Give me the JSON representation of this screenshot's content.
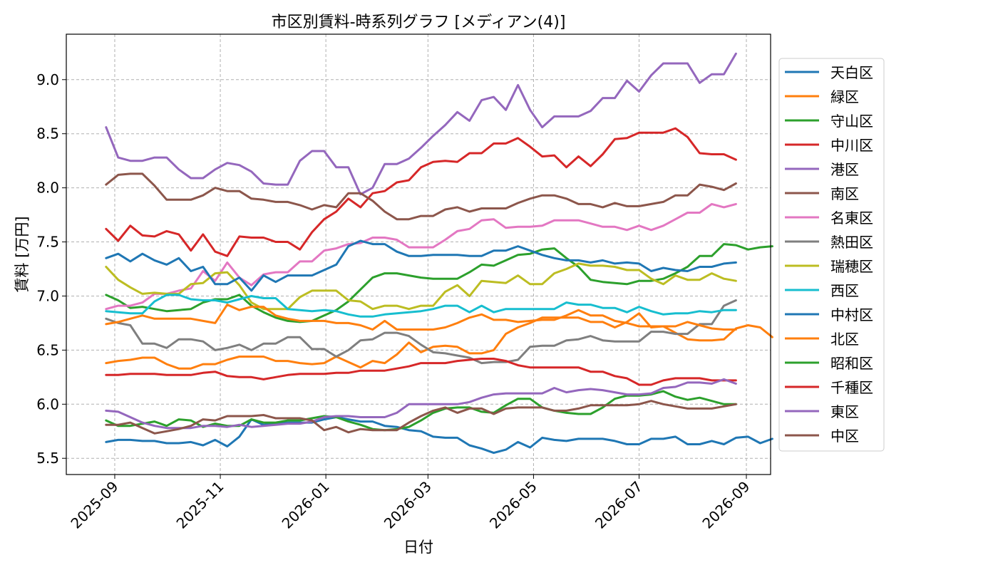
{
  "chart_data": {
    "type": "line",
    "title": "市区別賃料-時系列グラフ [メディアン(4)]",
    "xlabel": "日付",
    "ylabel": "賃料 [万円]",
    "x_start": "2025-08-27",
    "x_step_days": 7,
    "xlim": [
      "2025-08-04",
      "2026-09-15"
    ],
    "ylim": [
      5.35,
      9.42
    ],
    "xticks": [
      "2025-09",
      "2025-11",
      "2026-01",
      "2026-03",
      "2026-05",
      "2026-07",
      "2026-09"
    ],
    "xtick_dates": [
      "2025-09-01",
      "2025-11-01",
      "2026-01-01",
      "2026-03-01",
      "2026-05-01",
      "2026-07-01",
      "2026-09-01"
    ],
    "yticks": [
      5.5,
      6.0,
      6.5,
      7.0,
      7.5,
      8.0,
      8.5,
      9.0
    ],
    "ytick_labels": [
      "5.5",
      "6.0",
      "6.5",
      "7.0",
      "7.5",
      "8.0",
      "8.5",
      "9.0"
    ],
    "grid": true,
    "legend_position": "right-outside",
    "series": [
      {
        "name": "天白区",
        "color": "#1f77b4",
        "values": [
          5.65,
          5.67,
          5.67,
          5.66,
          5.66,
          5.64,
          5.64,
          5.65,
          5.62,
          5.67,
          5.61,
          5.7,
          5.86,
          5.81,
          5.82,
          5.83,
          5.83,
          5.83,
          5.86,
          5.88,
          5.86,
          5.84,
          5.84,
          5.8,
          5.79,
          5.76,
          5.75,
          5.7,
          5.69,
          5.69,
          5.62,
          5.59,
          5.55,
          5.58,
          5.65,
          5.6,
          5.69,
          5.67,
          5.66,
          5.68,
          5.68,
          5.68,
          5.66,
          5.63,
          5.63,
          5.68,
          5.68,
          5.7,
          5.63,
          5.63,
          5.66,
          5.63,
          5.69,
          5.7,
          5.64,
          5.68
        ]
      },
      {
        "name": "緑区",
        "color": "#ff7f0e",
        "values": [
          6.38,
          6.4,
          6.41,
          6.43,
          6.43,
          6.37,
          6.33,
          6.33,
          6.37,
          6.37,
          6.41,
          6.44,
          6.44,
          6.44,
          6.4,
          6.4,
          6.38,
          6.37,
          6.38,
          6.44,
          6.39,
          6.34,
          6.4,
          6.38,
          6.46,
          6.57,
          6.48,
          6.53,
          6.54,
          6.53,
          6.47,
          6.47,
          6.5,
          6.65,
          6.71,
          6.75,
          6.8,
          6.8,
          6.8,
          6.8,
          6.76,
          6.76,
          6.71,
          6.76,
          6.84,
          6.71,
          6.72,
          6.66,
          6.6,
          6.59,
          6.59,
          6.6,
          6.7,
          6.73,
          6.71,
          6.62
        ]
      },
      {
        "name": "守山区",
        "color": "#2ca02c",
        "values": [
          7.01,
          6.96,
          6.89,
          6.9,
          6.88,
          6.86,
          6.87,
          6.88,
          6.94,
          6.97,
          6.97,
          7.01,
          6.91,
          6.85,
          6.8,
          6.77,
          6.76,
          6.77,
          6.82,
          6.87,
          6.95,
          7.06,
          7.17,
          7.21,
          7.21,
          7.19,
          7.17,
          7.16,
          7.16,
          7.16,
          7.22,
          7.29,
          7.28,
          7.33,
          7.38,
          7.39,
          7.43,
          7.44,
          7.35,
          7.27,
          7.15,
          7.13,
          7.12,
          7.11,
          7.14,
          7.14,
          7.16,
          7.21,
          7.27,
          7.37,
          7.37,
          7.48,
          7.47,
          7.43,
          7.45,
          7.46
        ]
      },
      {
        "name": "中川区",
        "color": "#d62728",
        "values": [
          7.62,
          7.51,
          7.65,
          7.56,
          7.55,
          7.6,
          7.57,
          7.42,
          7.57,
          7.41,
          7.37,
          7.55,
          7.54,
          7.54,
          7.5,
          7.5,
          7.43,
          7.59,
          7.71,
          7.78,
          7.9,
          7.82,
          7.95,
          7.97,
          8.05,
          8.07,
          8.19,
          8.24,
          8.25,
          8.24,
          8.32,
          8.32,
          8.41,
          8.41,
          8.46,
          8.38,
          8.29,
          8.3,
          8.19,
          8.29,
          8.2,
          8.31,
          8.45,
          8.46,
          8.51,
          8.51,
          8.51,
          8.55,
          8.47,
          8.32,
          8.31,
          8.31,
          8.26
        ]
      },
      {
        "name": "港区",
        "color": "#9467bd",
        "values": [
          8.56,
          8.28,
          8.25,
          8.25,
          8.28,
          8.28,
          8.17,
          8.09,
          8.09,
          8.17,
          8.23,
          8.21,
          8.15,
          8.04,
          8.03,
          8.03,
          8.25,
          8.34,
          8.34,
          8.19,
          8.19,
          7.94,
          8.0,
          8.22,
          8.22,
          8.27,
          8.37,
          8.48,
          8.58,
          8.7,
          8.62,
          8.81,
          8.84,
          8.72,
          8.95,
          8.72,
          8.56,
          8.66,
          8.66,
          8.66,
          8.71,
          8.83,
          8.83,
          8.99,
          8.89,
          9.04,
          9.15,
          9.15,
          9.15,
          8.97,
          9.05,
          9.05,
          9.24
        ]
      },
      {
        "name": "南区",
        "color": "#8c564b",
        "values": [
          8.03,
          8.12,
          8.13,
          8.13,
          8.02,
          7.89,
          7.89,
          7.89,
          7.93,
          8.0,
          7.97,
          7.97,
          7.9,
          7.89,
          7.87,
          7.87,
          7.84,
          7.8,
          7.84,
          7.82,
          7.95,
          7.95,
          7.88,
          7.78,
          7.71,
          7.71,
          7.74,
          7.74,
          7.8,
          7.82,
          7.78,
          7.81,
          7.81,
          7.81,
          7.86,
          7.9,
          7.93,
          7.93,
          7.9,
          7.85,
          7.85,
          7.82,
          7.86,
          7.83,
          7.83,
          7.85,
          7.87,
          7.93,
          7.93,
          8.03,
          8.01,
          7.98,
          8.04
        ]
      },
      {
        "name": "名東区",
        "color": "#e377c2",
        "values": [
          6.88,
          6.91,
          6.91,
          6.94,
          7.02,
          7.02,
          7.05,
          7.07,
          7.23,
          7.14,
          7.31,
          7.17,
          7.1,
          7.2,
          7.22,
          7.22,
          7.32,
          7.32,
          7.42,
          7.44,
          7.48,
          7.49,
          7.54,
          7.54,
          7.52,
          7.45,
          7.45,
          7.45,
          7.52,
          7.6,
          7.62,
          7.7,
          7.71,
          7.63,
          7.64,
          7.64,
          7.65,
          7.7,
          7.7,
          7.7,
          7.67,
          7.64,
          7.64,
          7.61,
          7.65,
          7.61,
          7.65,
          7.71,
          7.77,
          7.77,
          7.85,
          7.82,
          7.85
        ]
      },
      {
        "name": "熱田区",
        "color": "#7f7f7f",
        "values": [
          6.79,
          6.75,
          6.73,
          6.56,
          6.56,
          6.52,
          6.6,
          6.6,
          6.58,
          6.5,
          6.52,
          6.55,
          6.5,
          6.56,
          6.56,
          6.62,
          6.62,
          6.51,
          6.51,
          6.44,
          6.5,
          6.59,
          6.6,
          6.66,
          6.66,
          6.63,
          6.55,
          6.48,
          6.47,
          6.45,
          6.43,
          6.38,
          6.39,
          6.39,
          6.41,
          6.53,
          6.54,
          6.54,
          6.59,
          6.6,
          6.63,
          6.59,
          6.58,
          6.58,
          6.58,
          6.67,
          6.67,
          6.65,
          6.65,
          6.74,
          6.74,
          6.91,
          6.96
        ]
      },
      {
        "name": "瑞穂区",
        "color": "#bcbd22",
        "values": [
          7.27,
          7.15,
          7.08,
          7.02,
          7.03,
          7.02,
          7.02,
          7.11,
          7.12,
          7.21,
          7.22,
          7.1,
          6.94,
          6.88,
          6.88,
          6.88,
          6.99,
          7.05,
          7.05,
          7.05,
          6.96,
          6.95,
          6.88,
          6.91,
          6.91,
          6.88,
          6.91,
          6.91,
          7.04,
          7.1,
          7.0,
          7.14,
          7.13,
          7.12,
          7.19,
          7.11,
          7.11,
          7.21,
          7.25,
          7.3,
          7.28,
          7.28,
          7.27,
          7.24,
          7.24,
          7.16,
          7.11,
          7.19,
          7.15,
          7.15,
          7.21,
          7.16,
          7.14
        ]
      },
      {
        "name": "西区",
        "color": "#17becf",
        "values": [
          6.86,
          6.85,
          6.84,
          6.84,
          6.95,
          7.01,
          7.01,
          6.97,
          6.96,
          6.96,
          6.94,
          6.97,
          7.0,
          6.98,
          6.98,
          6.88,
          6.87,
          6.86,
          6.87,
          6.86,
          6.83,
          6.81,
          6.81,
          6.83,
          6.84,
          6.85,
          6.86,
          6.88,
          6.91,
          6.91,
          6.85,
          6.91,
          6.85,
          6.88,
          6.88,
          6.88,
          6.88,
          6.88,
          6.94,
          6.92,
          6.92,
          6.89,
          6.89,
          6.85,
          6.9,
          6.86,
          6.83,
          6.84,
          6.84,
          6.86,
          6.85,
          6.87,
          6.87
        ]
      },
      {
        "name": "中村区",
        "color": "#1f77b4",
        "values": [
          7.35,
          7.39,
          7.32,
          7.39,
          7.33,
          7.29,
          7.35,
          7.23,
          7.27,
          7.11,
          7.11,
          7.17,
          7.05,
          7.19,
          7.13,
          7.19,
          7.19,
          7.19,
          7.24,
          7.29,
          7.46,
          7.51,
          7.48,
          7.48,
          7.41,
          7.37,
          7.37,
          7.38,
          7.38,
          7.38,
          7.37,
          7.37,
          7.42,
          7.42,
          7.46,
          7.42,
          7.38,
          7.35,
          7.33,
          7.33,
          7.31,
          7.33,
          7.3,
          7.31,
          7.3,
          7.23,
          7.26,
          7.24,
          7.23,
          7.27,
          7.27,
          7.3,
          7.31
        ]
      },
      {
        "name": "北区",
        "color": "#ff7f0e",
        "values": [
          6.74,
          6.76,
          6.79,
          6.82,
          6.79,
          6.79,
          6.79,
          6.79,
          6.77,
          6.75,
          6.92,
          6.87,
          6.9,
          6.9,
          6.82,
          6.79,
          6.77,
          6.77,
          6.77,
          6.75,
          6.75,
          6.73,
          6.69,
          6.77,
          6.69,
          6.69,
          6.69,
          6.69,
          6.71,
          6.75,
          6.8,
          6.83,
          6.78,
          6.78,
          6.76,
          6.77,
          6.78,
          6.78,
          6.82,
          6.87,
          6.82,
          6.82,
          6.77,
          6.75,
          6.72,
          6.72,
          6.72,
          6.72,
          6.76,
          6.73,
          6.7,
          6.69,
          6.69
        ]
      },
      {
        "name": "昭和区",
        "color": "#2ca02c",
        "values": [
          5.85,
          5.8,
          5.8,
          5.82,
          5.84,
          5.8,
          5.86,
          5.85,
          5.79,
          5.82,
          5.8,
          5.8,
          5.86,
          5.83,
          5.83,
          5.85,
          5.85,
          5.87,
          5.89,
          5.88,
          5.84,
          5.81,
          5.77,
          5.76,
          5.77,
          5.79,
          5.85,
          5.92,
          5.96,
          5.97,
          5.97,
          5.93,
          5.92,
          5.99,
          6.05,
          6.05,
          5.97,
          5.94,
          5.92,
          5.91,
          5.91,
          5.97,
          6.05,
          6.08,
          6.08,
          6.09,
          6.12,
          6.07,
          6.04,
          6.06,
          6.03,
          6.0,
          6.0
        ]
      },
      {
        "name": "千種区",
        "color": "#d62728",
        "values": [
          6.27,
          6.27,
          6.28,
          6.28,
          6.28,
          6.27,
          6.27,
          6.27,
          6.29,
          6.3,
          6.26,
          6.25,
          6.25,
          6.23,
          6.25,
          6.27,
          6.28,
          6.28,
          6.28,
          6.29,
          6.29,
          6.31,
          6.31,
          6.31,
          6.33,
          6.35,
          6.38,
          6.38,
          6.38,
          6.4,
          6.41,
          6.42,
          6.42,
          6.4,
          6.36,
          6.34,
          6.34,
          6.34,
          6.34,
          6.34,
          6.3,
          6.3,
          6.26,
          6.24,
          6.18,
          6.18,
          6.22,
          6.24,
          6.24,
          6.24,
          6.22,
          6.22,
          6.22
        ]
      },
      {
        "name": "東区",
        "color": "#9467bd",
        "values": [
          5.94,
          5.93,
          5.88,
          5.83,
          5.8,
          5.78,
          5.78,
          5.78,
          5.8,
          5.8,
          5.79,
          5.81,
          5.79,
          5.8,
          5.81,
          5.82,
          5.82,
          5.84,
          5.88,
          5.89,
          5.89,
          5.88,
          5.88,
          5.88,
          5.92,
          6.0,
          6.0,
          6.0,
          6.0,
          6.0,
          6.02,
          6.06,
          6.09,
          6.1,
          6.1,
          6.1,
          6.1,
          6.15,
          6.11,
          6.13,
          6.14,
          6.13,
          6.11,
          6.09,
          6.09,
          6.1,
          6.15,
          6.16,
          6.2,
          6.2,
          6.19,
          6.23,
          6.19
        ]
      },
      {
        "name": "中区",
        "color": "#8c564b",
        "values": [
          5.81,
          5.81,
          5.83,
          5.78,
          5.73,
          5.75,
          5.77,
          5.8,
          5.86,
          5.85,
          5.89,
          5.89,
          5.89,
          5.9,
          5.87,
          5.87,
          5.87,
          5.85,
          5.76,
          5.79,
          5.74,
          5.77,
          5.76,
          5.76,
          5.76,
          5.83,
          5.89,
          5.94,
          5.97,
          5.92,
          5.96,
          5.96,
          5.91,
          5.96,
          5.97,
          5.97,
          5.97,
          5.94,
          5.94,
          5.96,
          5.99,
          5.99,
          5.99,
          5.99,
          6.0,
          6.03,
          6.0,
          5.98,
          5.96,
          5.96,
          5.96,
          5.98,
          6.0
        ]
      }
    ]
  }
}
